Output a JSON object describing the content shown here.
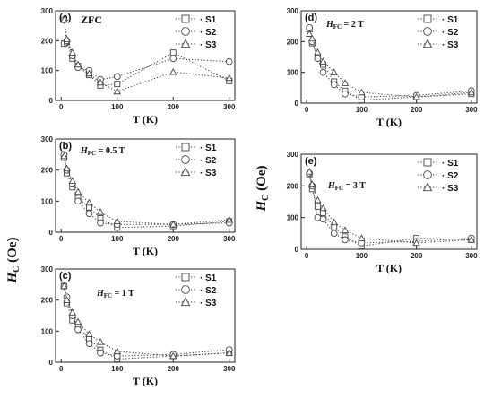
{
  "figure": {
    "shared_ylabel_main": "H",
    "shared_ylabel_sub": "C",
    "shared_ylabel_unit": " (Oe)"
  },
  "chart_data": [
    {
      "type": "scatter",
      "panel_label": "(a)",
      "condition": "ZFC",
      "condition_sub": "",
      "condition_rest": "",
      "xlabel": "T (K)",
      "x": [
        5,
        10,
        20,
        30,
        50,
        70,
        100,
        200,
        300
      ],
      "xlim": [
        -10,
        310
      ],
      "ylim": [
        0,
        300
      ],
      "xticks": [
        0,
        100,
        200,
        300
      ],
      "yticks": [
        0,
        100,
        200,
        300
      ],
      "series": [
        {
          "name": "S1",
          "marker": "square",
          "values": [
            190,
            195,
            140,
            115,
            85,
            50,
            55,
            160,
            65
          ]
        },
        {
          "name": "S2",
          "marker": "circle",
          "values": [
            270,
            200,
            150,
            110,
            100,
            70,
            80,
            140,
            130
          ]
        },
        {
          "name": "S3",
          "marker": "triangle",
          "values": [
            270,
            205,
            160,
            120,
            90,
            60,
            30,
            95,
            75
          ]
        }
      ]
    },
    {
      "type": "scatter",
      "panel_label": "(b)",
      "condition": "H",
      "condition_sub": "FC",
      "condition_rest": " = 0.5 T",
      "xlabel": "T (K)",
      "x": [
        5,
        10,
        20,
        30,
        50,
        70,
        100,
        200,
        300
      ],
      "xlim": [
        -10,
        310
      ],
      "ylim": [
        0,
        300
      ],
      "xticks": [
        0,
        100,
        200,
        300
      ],
      "yticks": [
        0,
        100,
        200,
        300
      ],
      "series": [
        {
          "name": "S1",
          "marker": "square",
          "values": [
            240,
            190,
            145,
            110,
            80,
            45,
            15,
            20,
            35
          ]
        },
        {
          "name": "S2",
          "marker": "circle",
          "values": [
            250,
            200,
            155,
            100,
            60,
            30,
            25,
            25,
            30
          ]
        },
        {
          "name": "S3",
          "marker": "triangle",
          "values": [
            245,
            205,
            165,
            130,
            95,
            65,
            35,
            25,
            40
          ]
        }
      ]
    },
    {
      "type": "scatter",
      "panel_label": "(c)",
      "condition": "H",
      "condition_sub": "FC",
      "condition_rest": " = 1 T",
      "xlabel": "T (K)",
      "x": [
        5,
        10,
        20,
        30,
        50,
        70,
        100,
        200,
        300
      ],
      "xlim": [
        -10,
        310
      ],
      "ylim": [
        0,
        300
      ],
      "xticks": [
        0,
        100,
        200,
        300
      ],
      "yticks": [
        0,
        100,
        200,
        300
      ],
      "series": [
        {
          "name": "S1",
          "marker": "square",
          "values": [
            245,
            190,
            135,
            115,
            75,
            40,
            10,
            20,
            30
          ]
        },
        {
          "name": "S2",
          "marker": "circle",
          "values": [
            245,
            210,
            150,
            105,
            60,
            30,
            20,
            25,
            40
          ]
        },
        {
          "name": "S3",
          "marker": "triangle",
          "values": [
            245,
            200,
            160,
            130,
            90,
            65,
            35,
            20,
            30
          ]
        }
      ]
    },
    {
      "type": "scatter",
      "panel_label": "(d)",
      "condition": "H",
      "condition_sub": "FC",
      "condition_rest": " = 2 T",
      "xlabel": "T (K)",
      "x": [
        5,
        10,
        20,
        30,
        50,
        70,
        100,
        200,
        300
      ],
      "xlim": [
        -10,
        310
      ],
      "ylim": [
        0,
        300
      ],
      "xticks": [
        0,
        100,
        200,
        300
      ],
      "yticks": [
        0,
        100,
        200,
        300
      ],
      "series": [
        {
          "name": "S1",
          "marker": "square",
          "values": [
            240,
            195,
            150,
            125,
            70,
            40,
            10,
            20,
            30
          ]
        },
        {
          "name": "S2",
          "marker": "circle",
          "values": [
            245,
            200,
            145,
            100,
            60,
            30,
            20,
            25,
            40
          ]
        },
        {
          "name": "S3",
          "marker": "triangle",
          "values": [
            225,
            210,
            165,
            135,
            100,
            65,
            35,
            20,
            35
          ]
        }
      ]
    },
    {
      "type": "scatter",
      "panel_label": "(e)",
      "condition": "H",
      "condition_sub": "FC",
      "condition_rest": " = 3 T",
      "xlabel": "T (K)",
      "x": [
        5,
        10,
        20,
        30,
        50,
        70,
        100,
        200,
        300
      ],
      "xlim": [
        -10,
        310
      ],
      "ylim": [
        0,
        300
      ],
      "xticks": [
        0,
        100,
        200,
        300
      ],
      "yticks": [
        0,
        100,
        200,
        300
      ],
      "series": [
        {
          "name": "S1",
          "marker": "square",
          "values": [
            235,
            190,
            135,
            115,
            70,
            40,
            10,
            35,
            30
          ]
        },
        {
          "name": "S2",
          "marker": "circle",
          "values": [
            240,
            200,
            100,
            95,
            50,
            30,
            20,
            25,
            35
          ]
        },
        {
          "name": "S3",
          "marker": "triangle",
          "values": [
            245,
            205,
            155,
            130,
            85,
            60,
            35,
            20,
            30
          ]
        }
      ]
    }
  ]
}
